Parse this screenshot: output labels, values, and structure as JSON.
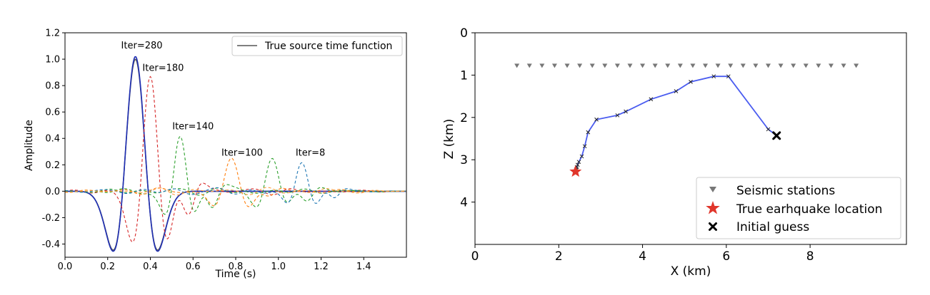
{
  "chart_data": [
    {
      "type": "line",
      "title": "",
      "xlabel": "Time (s)",
      "ylabel": "Amplitude",
      "xlim": [
        0.0,
        1.6
      ],
      "ylim": [
        -0.5,
        1.2
      ],
      "xticks": [
        "0.0",
        "0.2",
        "0.4",
        "0.6",
        "0.8",
        "1.0",
        "1.2",
        "1.4"
      ],
      "yticks": [
        "-0.4",
        "-0.2",
        "0.0",
        "0.2",
        "0.4",
        "0.6",
        "0.8",
        "1.0",
        "1.2"
      ],
      "legend": {
        "position": "top-right",
        "entries": [
          "True source time function"
        ]
      },
      "grid": false,
      "series": [
        {
          "name": "True source time function",
          "style": "solid",
          "color": "#555555",
          "peak_time": 0.33,
          "peak_amplitude": 1.0
        },
        {
          "style": "solid",
          "color": "#1f2fb4",
          "peak_time": 0.33,
          "peak_amplitude": 1.02
        },
        {
          "style": "dashed",
          "color": "#d62728",
          "peak_time": 0.4,
          "peak_amplitude": 0.87
        },
        {
          "style": "dashed",
          "color": "#2ca02c",
          "peak_time": 0.54,
          "peak_amplitude": 0.42
        },
        {
          "style": "dashed",
          "color": "#2ca02c",
          "peak_time": 0.97,
          "peak_amplitude": 0.26
        },
        {
          "style": "dashed",
          "color": "#ff7f0e",
          "peak_time": 0.78,
          "peak_amplitude": 0.22
        },
        {
          "style": "dashed",
          "color": "#1f77b4",
          "peak_time": 1.11,
          "peak_amplitude": 0.23
        },
        {
          "style": "dashed",
          "color": "#ff9f40",
          "peak_time": 1.22,
          "peak_amplitude": 0.02
        }
      ],
      "annotations": [
        {
          "text": "Iter=280",
          "x": 0.36,
          "y": 1.08
        },
        {
          "text": "Iter=180",
          "x": 0.46,
          "y": 0.91
        },
        {
          "text": "Iter=140",
          "x": 0.6,
          "y": 0.47
        },
        {
          "text": "Iter=100",
          "x": 0.83,
          "y": 0.27
        },
        {
          "text": "Iter=8",
          "x": 1.15,
          "y": 0.27
        }
      ]
    },
    {
      "type": "scatter",
      "title": "",
      "xlabel": "X (km)",
      "ylabel": "Z (km)",
      "xlim": [
        0,
        10.3
      ],
      "ylim": [
        5,
        0
      ],
      "y_inverted": true,
      "xticks": [
        "0",
        "2",
        "4",
        "6",
        "8"
      ],
      "yticks": [
        "0",
        "1",
        "2",
        "3",
        "4"
      ],
      "legend": {
        "position": "bottom-right",
        "entries": [
          "Seismic stations",
          "True earhquake location",
          "Initial guess"
        ]
      },
      "grid": false,
      "stations": {
        "name": "Seismic stations",
        "color": "#777777",
        "z": 0.78,
        "x": [
          1.0,
          1.3,
          1.6,
          1.9,
          2.2,
          2.5,
          2.8,
          3.1,
          3.4,
          3.7,
          4.0,
          4.3,
          4.6,
          4.9,
          5.2,
          5.5,
          5.8,
          6.1,
          6.4,
          6.7,
          7.0,
          7.3,
          7.6,
          7.9,
          8.2,
          8.5,
          8.8,
          9.1
        ]
      },
      "true_location": {
        "name": "True earhquake location",
        "color": "#e0362b",
        "x": 2.4,
        "z": 3.28
      },
      "initial_guess": {
        "name": "Initial guess",
        "color": "#000000",
        "x": 7.2,
        "z": 2.43
      },
      "path": {
        "color": "#4a5cf0",
        "x": [
          7.2,
          7.0,
          6.05,
          5.7,
          5.15,
          4.8,
          4.2,
          3.6,
          3.4,
          2.9,
          2.7,
          2.62,
          2.55,
          2.48,
          2.45,
          2.43,
          2.42,
          2.41,
          2.4
        ],
        "z": [
          2.43,
          2.28,
          1.03,
          1.03,
          1.16,
          1.38,
          1.57,
          1.86,
          1.95,
          2.05,
          2.35,
          2.68,
          2.92,
          3.05,
          3.12,
          3.17,
          3.22,
          3.25,
          3.28
        ]
      }
    }
  ]
}
